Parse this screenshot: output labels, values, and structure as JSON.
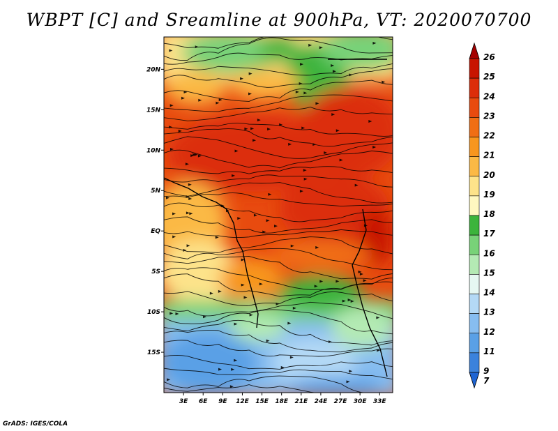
{
  "title": "WBPT [C] and Sreamline at 900hPa, VT: 2020070700",
  "footer": "GrADS: IGES/COLA",
  "map": {
    "lon_range": [
      0,
      35
    ],
    "lat_range": [
      -20,
      24
    ],
    "x_ticks": [
      "3E",
      "6E",
      "9E",
      "12E",
      "15E",
      "18E",
      "21E",
      "24E",
      "27E",
      "30E",
      "33E"
    ],
    "x_tick_values": [
      3,
      6,
      9,
      12,
      15,
      18,
      21,
      24,
      27,
      30,
      33
    ],
    "y_ticks": [
      "20N",
      "15N",
      "10N",
      "5N",
      "EQ",
      "5S",
      "10S",
      "15S"
    ],
    "y_tick_values": [
      20,
      15,
      10,
      5,
      0,
      -5,
      -10,
      -15
    ]
  },
  "colorbar": {
    "labels": [
      "26",
      "25",
      "24",
      "23",
      "22",
      "21",
      "20",
      "19",
      "18",
      "17",
      "16",
      "15",
      "14",
      "13",
      "12",
      "11",
      "9",
      "7"
    ],
    "colors": [
      "#a50000",
      "#c81400",
      "#dc2d0a",
      "#e84b0f",
      "#f06e14",
      "#f8961e",
      "#fbb945",
      "#fde38a",
      "#fff8c0",
      "#3cb43c",
      "#78d278",
      "#b4eab4",
      "#e6f8f2",
      "#b4d9f5",
      "#87bdf0",
      "#5aa0e6",
      "#3b82dc",
      "#1e64d2"
    ]
  }
}
